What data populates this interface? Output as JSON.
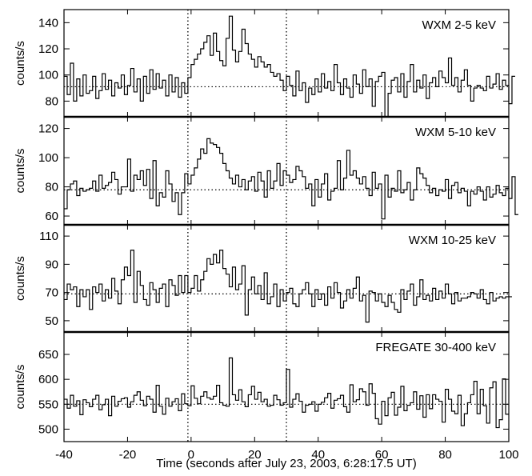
{
  "chart_data": {
    "type": "line",
    "xlabel": "Time (seconds after July 23, 2003, 6:28:17.5 UT)",
    "xlim": [
      -40,
      100
    ],
    "xticks": [
      -40,
      -20,
      0,
      20,
      40,
      60,
      80,
      100
    ],
    "xtick_labels": [
      "-40",
      "-20",
      "0",
      "20",
      "40",
      "60",
      "80",
      "100"
    ],
    "vlines": [
      -1,
      30
    ],
    "bin_width": 1,
    "panels": [
      {
        "title": "WXM 2-5 keV",
        "ylabel": "counts/s",
        "ylim": [
          68,
          150
        ],
        "yticks": [
          80,
          100,
          120,
          140
        ],
        "background": 91,
        "x_start": -40,
        "values": [
          99,
          85,
          109,
          80,
          97,
          84,
          100,
          86,
          88,
          99,
          82,
          88,
          101,
          89,
          96,
          84,
          94,
          90,
          100,
          85,
          92,
          105,
          87,
          97,
          80,
          99,
          86,
          104,
          89,
          101,
          90,
          96,
          84,
          100,
          87,
          98,
          83,
          94,
          86,
          98,
          108,
          112,
          116,
          120,
          125,
          130,
          115,
          132,
          118,
          111,
          107,
          128,
          145,
          119,
          110,
          118,
          135,
          124,
          116,
          112,
          106,
          114,
          110,
          106,
          108,
          102,
          99,
          101,
          96,
          88,
          99,
          92,
          84,
          103,
          88,
          94,
          79,
          90,
          85,
          97,
          87,
          101,
          90,
          95,
          88,
          108,
          94,
          85,
          97,
          90,
          83,
          100,
          93,
          86,
          104,
          91,
          97,
          76,
          95,
          99,
          102,
          67,
          86,
          96,
          98,
          87,
          101,
          83,
          95,
          108,
          87,
          96,
          90,
          100,
          82,
          94,
          98,
          91,
          103,
          98,
          94,
          113,
          92,
          98,
          87,
          96,
          104,
          92,
          80,
          90,
          92,
          90,
          88,
          99,
          90,
          93,
          101,
          89,
          96,
          92,
          78,
          99
        ],
        "series": [
          {
            "name": "WXM 2-5 keV"
          }
        ]
      },
      {
        "title": "WXM 5-10 keV",
        "ylabel": "counts/s",
        "ylim": [
          54,
          128
        ],
        "yticks": [
          60,
          80,
          100,
          120
        ],
        "background": 78,
        "x_start": -40,
        "values": [
          65,
          78,
          82,
          84,
          74,
          79,
          77,
          78,
          79,
          84,
          77,
          88,
          79,
          81,
          83,
          90,
          85,
          75,
          80,
          80,
          99,
          77,
          88,
          85,
          91,
          81,
          92,
          72,
          98,
          67,
          76,
          73,
          91,
          82,
          70,
          76,
          61,
          76,
          89,
          82,
          88,
          93,
          99,
          106,
          103,
          113,
          110,
          109,
          107,
          103,
          96,
          91,
          86,
          82,
          88,
          80,
          85,
          78,
          84,
          87,
          77,
          90,
          84,
          73,
          91,
          79,
          84,
          96,
          81,
          91,
          88,
          83,
          85,
          94,
          91,
          87,
          79,
          82,
          67,
          85,
          73,
          82,
          89,
          71,
          77,
          79,
          98,
          78,
          86,
          105,
          88,
          91,
          86,
          82,
          87,
          79,
          74,
          90,
          79,
          82,
          58,
          88,
          73,
          79,
          77,
          91,
          76,
          78,
          83,
          71,
          78,
          93,
          89,
          86,
          81,
          76,
          79,
          74,
          78,
          77,
          85,
          72,
          81,
          83,
          76,
          79,
          77,
          67,
          77,
          75,
          80,
          77,
          71,
          80,
          73,
          75,
          81,
          76,
          74,
          79,
          72,
          87,
          61
        ],
        "series": [
          {
            "name": "WXM 5-10 keV"
          }
        ]
      },
      {
        "title": "WXM 10-25 keV",
        "ylabel": "counts/s",
        "ylim": [
          42,
          118
        ],
        "yticks": [
          50,
          70,
          90,
          110
        ],
        "background": 69,
        "x_start": -40,
        "values": [
          65,
          76,
          72,
          74,
          60,
          72,
          67,
          72,
          58,
          74,
          70,
          76,
          64,
          72,
          66,
          80,
          71,
          62,
          79,
          88,
          82,
          100,
          63,
          85,
          75,
          65,
          61,
          77,
          72,
          63,
          73,
          76,
          60,
          79,
          75,
          68,
          82,
          70,
          82,
          70,
          73,
          82,
          71,
          79,
          85,
          94,
          90,
          97,
          91,
          100,
          87,
          83,
          74,
          88,
          72,
          76,
          89,
          54,
          72,
          81,
          69,
          75,
          65,
          84,
          62,
          67,
          76,
          60,
          72,
          64,
          70,
          73,
          62,
          60,
          69,
          72,
          77,
          69,
          60,
          72,
          65,
          69,
          61,
          74,
          66,
          77,
          70,
          59,
          64,
          72,
          66,
          73,
          81,
          64,
          68,
          49,
          71,
          70,
          64,
          69,
          63,
          60,
          68,
          63,
          58,
          56,
          72,
          65,
          71,
          76,
          61,
          67,
          79,
          65,
          68,
          64,
          73,
          65,
          71,
          66,
          76,
          69,
          62,
          70,
          64,
          66,
          66,
          67,
          70,
          69,
          66,
          72,
          65,
          62,
          70,
          64,
          66,
          67,
          66,
          67,
          67
        ],
        "series": [
          {
            "name": "WXM 10-25 keV"
          }
        ]
      },
      {
        "title": "FREGATE 30-400 keV",
        "ylabel": "counts/s",
        "ylim": [
          475,
          695
        ],
        "yticks": [
          500,
          550,
          600,
          650
        ],
        "background": 550,
        "x_start": -40,
        "values": [
          560,
          542,
          568,
          546,
          557,
          529,
          559,
          553,
          545,
          560,
          568,
          539,
          549,
          560,
          527,
          566,
          546,
          556,
          561,
          563,
          544,
          555,
          568,
          575,
          558,
          547,
          566,
          560,
          534,
          588,
          546,
          530,
          562,
          546,
          555,
          561,
          537,
          571,
          551,
          547,
          587,
          562,
          551,
          566,
          575,
          563,
          560,
          566,
          588,
          553,
          548,
          546,
          643,
          569,
          558,
          579,
          555,
          545,
          569,
          586,
          560,
          574,
          555,
          560,
          546,
          548,
          568,
          559,
          548,
          553,
          620,
          544,
          560,
          571,
          556,
          534,
          548,
          550,
          555,
          536,
          550,
          554,
          563,
          572,
          542,
          558,
          561,
          568,
          545,
          534,
          589,
          555,
          559,
          581,
          575,
          548,
          591,
          572,
          521,
          510,
          556,
          527,
          563,
          574,
          528,
          544,
          586,
          537,
          548,
          553,
          575,
          540,
          567,
          524,
          569,
          541,
          569,
          560,
          556,
          514,
          580,
          560,
          536,
          531,
          568,
          507,
          531,
          553,
          569,
          596,
          531,
          580,
          547,
          512,
          583,
          595,
          503,
          519,
          601,
          530
        ],
        "series": [
          {
            "name": "FREGATE 30-400 keV"
          }
        ]
      }
    ]
  }
}
